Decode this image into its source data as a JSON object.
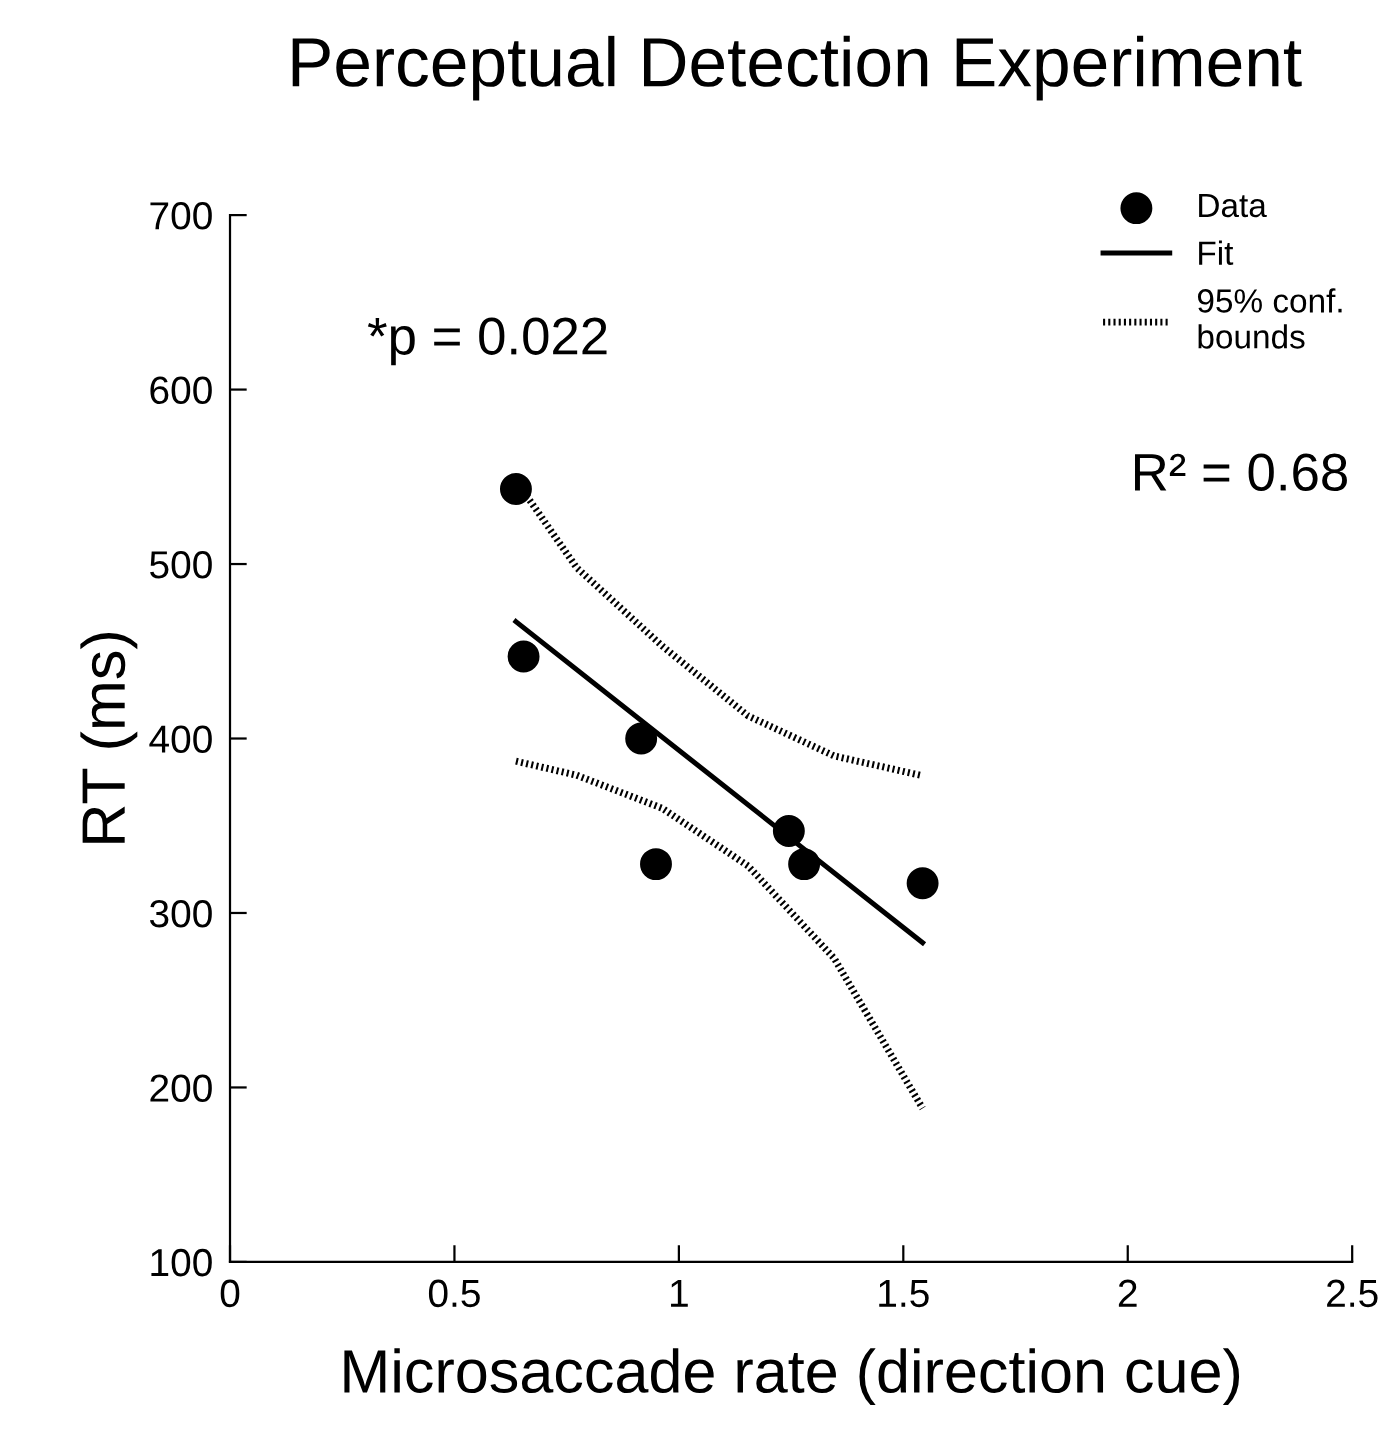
{
  "chart_data": {
    "type": "scatter",
    "title": "Perceptual Detection Experiment",
    "xlabel": "Microsaccade rate (direction cue)",
    "ylabel": "RT (ms)",
    "xlim": [
      0,
      2.5
    ],
    "xticks": [
      0,
      0.5,
      1,
      1.5,
      2,
      2.5
    ],
    "ylim": [
      100,
      700
    ],
    "yticks": [
      100,
      200,
      300,
      400,
      500,
      600,
      700
    ],
    "legend": "top right",
    "grid": false,
    "annotations": [
      "*p = 0.022",
      "R² = 0.68"
    ],
    "series": [
      {
        "name": "Data",
        "marker": "circle",
        "color": "#000000",
        "x": [
          0.637,
          0.654,
          0.916,
          0.949,
          1.245,
          1.279,
          1.543
        ],
        "values": [
          543,
          447,
          400,
          328,
          347,
          328,
          317
        ]
      },
      {
        "name": "Fit",
        "type": "line",
        "line_style": "solid",
        "color": "#000000",
        "x": [
          0.637,
          1.543
        ],
        "values": [
          467,
          283
        ]
      },
      {
        "name": "95% conf.\nbounds",
        "type": "line",
        "line_style": "dotted",
        "color": "#000000",
        "x": [
          0.661,
          0.772,
          0.963,
          1.154,
          1.346,
          1.537
        ],
        "values": [
          539,
          498,
          453,
          413,
          390,
          379
        ]
      },
      {
        "type": "line",
        "line_style": "dotted",
        "color": "#000000",
        "x": [
          0.637,
          0.772,
          0.963,
          1.154,
          1.346,
          1.543
        ],
        "values": [
          387,
          379,
          360,
          327,
          274,
          188
        ]
      }
    ]
  }
}
